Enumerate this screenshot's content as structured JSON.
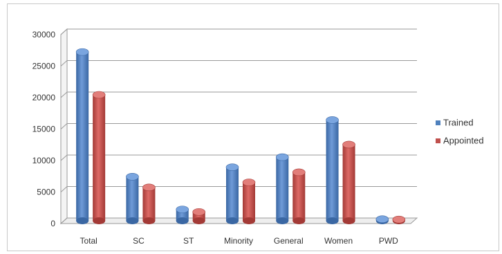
{
  "chart_data": {
    "type": "bar",
    "title": "",
    "xlabel": "",
    "ylabel": "",
    "categories": [
      "Total",
      "SC",
      "ST",
      "Minority",
      "General",
      "Women",
      "PWD"
    ],
    "series": [
      {
        "name": "Trained",
        "color": "#4F81BD",
        "values": [
          26800,
          7000,
          1800,
          8500,
          10100,
          16000,
          250
        ]
      },
      {
        "name": "Appointed",
        "color": "#C0504D",
        "values": [
          20000,
          5300,
          1400,
          6100,
          7700,
          12100,
          200
        ]
      }
    ],
    "ylim": [
      0,
      30000
    ],
    "yticks": [
      "0",
      "5000",
      "10000",
      "15000",
      "20000",
      "25000",
      "30000"
    ],
    "grid": true,
    "legend_position": "right"
  }
}
